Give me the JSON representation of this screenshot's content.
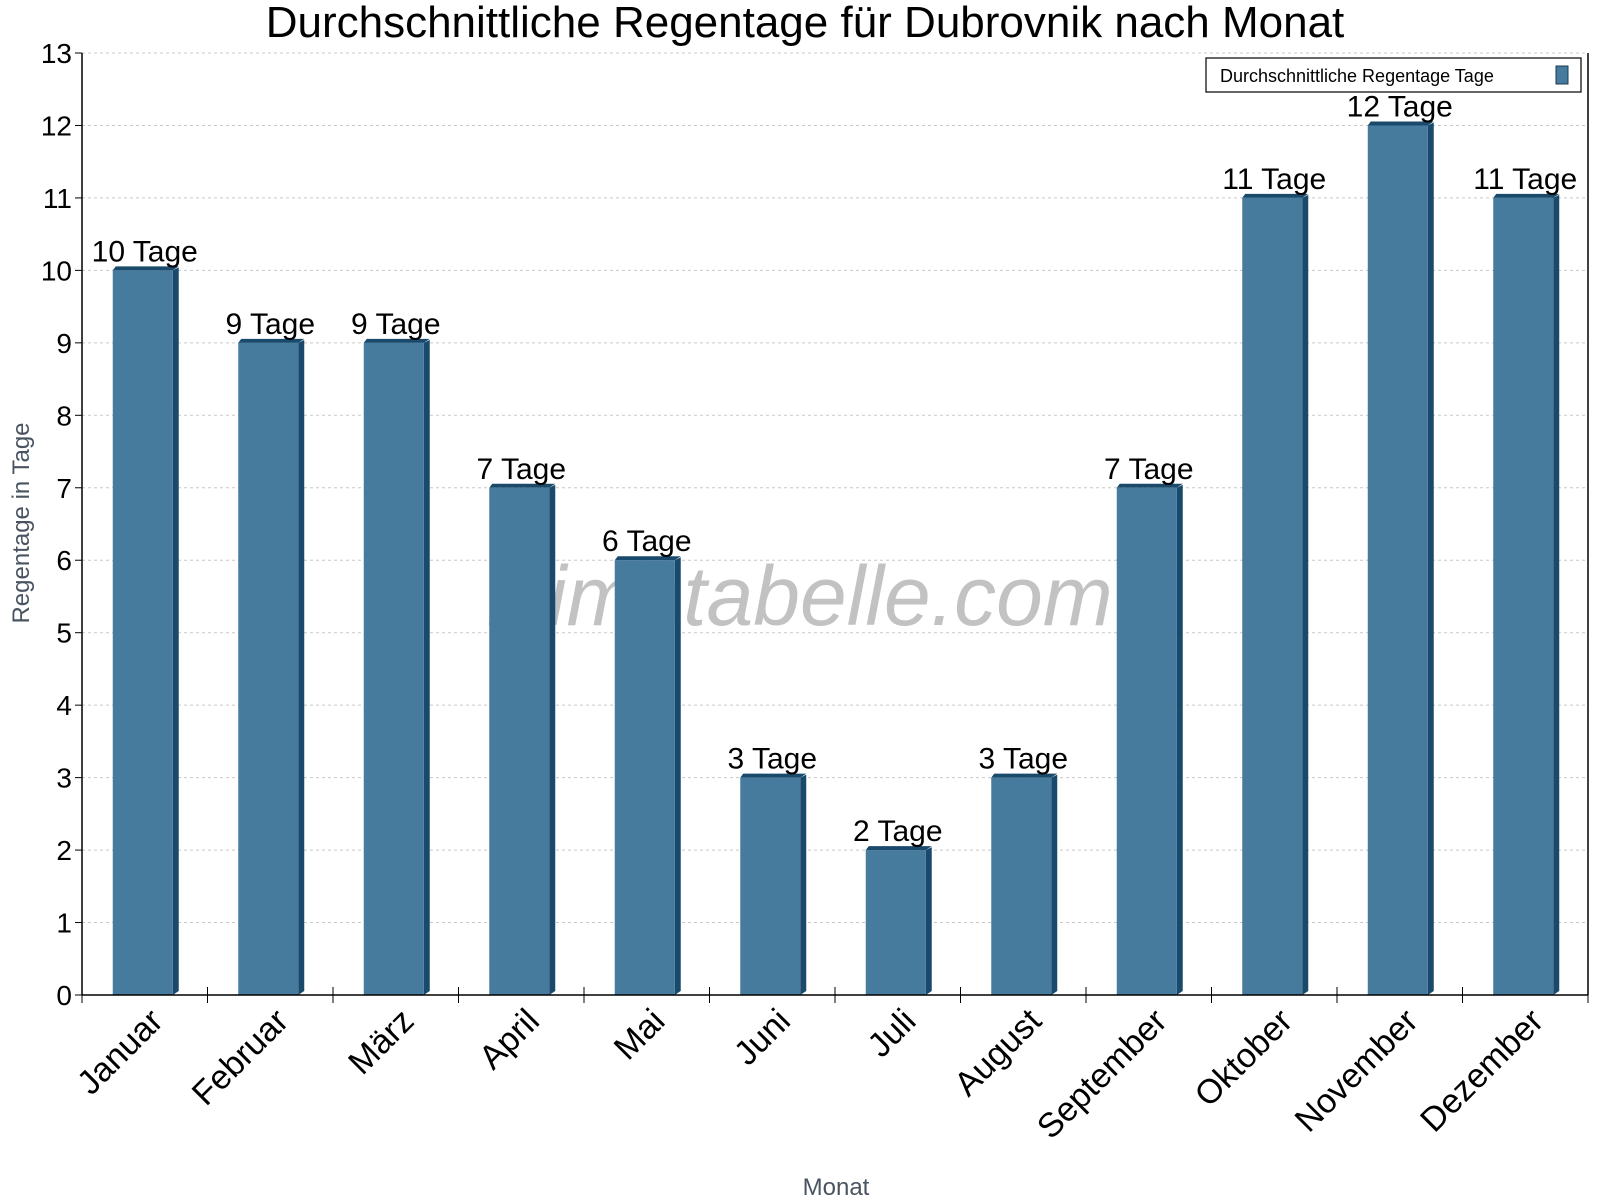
{
  "chart_data": {
    "type": "bar",
    "title": "Durchschnittliche Regentage für Dubrovnik nach Monat",
    "xlabel": "Monat",
    "ylabel": "Regentage in Tage",
    "categories": [
      "Januar",
      "Februar",
      "März",
      "April",
      "Mai",
      "Juni",
      "Juli",
      "August",
      "September",
      "Oktober",
      "November",
      "Dezember"
    ],
    "series": [
      {
        "name": "Durchschnittliche Regentage Tage",
        "values": [
          10,
          9,
          9,
          7,
          6,
          3,
          2,
          3,
          7,
          11,
          12,
          11
        ],
        "color": "#467b9d",
        "side_color": "#1a4a6b"
      }
    ],
    "data_labels": [
      "10 Tage",
      "9 Tage",
      "9 Tage",
      "7 Tage",
      "6 Tage",
      "3 Tage",
      "2 Tage",
      "3 Tage",
      "7 Tage",
      "11 Tage",
      "12 Tage",
      "11 Tage"
    ],
    "ylim": [
      0,
      13
    ],
    "yticks": [
      0,
      1,
      2,
      3,
      4,
      5,
      6,
      7,
      8,
      9,
      10,
      11,
      12,
      13
    ],
    "grid": true,
    "legend": "top-right",
    "watermark": "klimatabelle.com"
  }
}
